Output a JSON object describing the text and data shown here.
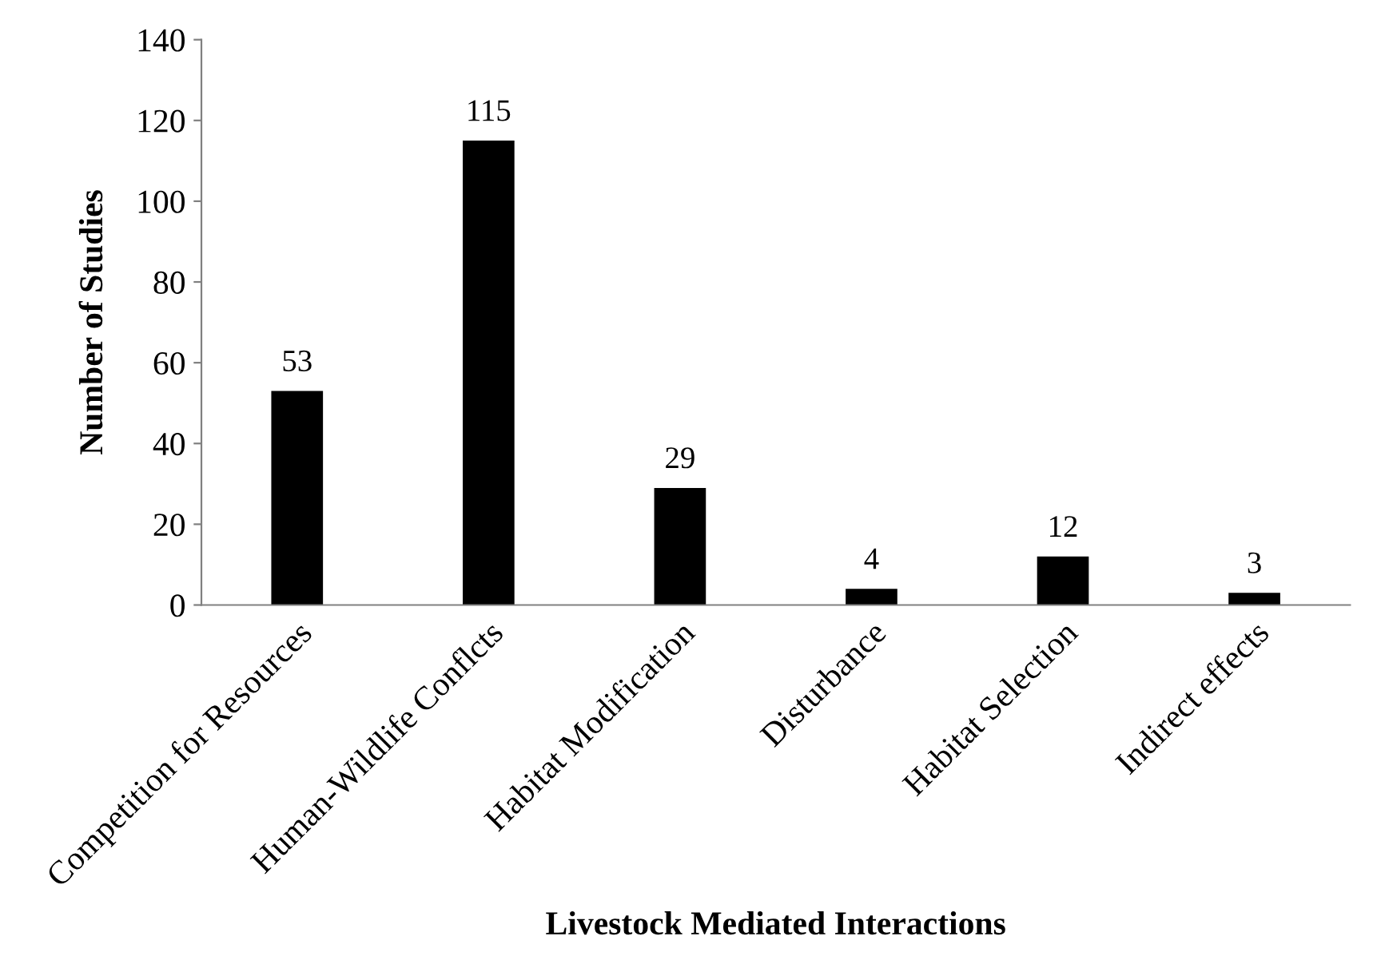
{
  "chart_data": {
    "type": "bar",
    "xlabel": "Livestock Mediated Interactions",
    "ylabel": "Number of Studies",
    "categories": [
      "Competition for Resources",
      "Human-Wildlife Conflcts",
      "Habitat Modification",
      "Disturbance",
      "Habitat Selection",
      "Indirect effects"
    ],
    "values": [
      53,
      115,
      29,
      4,
      12,
      3
    ],
    "color": "#000000",
    "ylim": [
      0,
      140
    ],
    "yticks": [
      0,
      20,
      40,
      60,
      80,
      100,
      120,
      140
    ],
    "data_labels": true,
    "grid": false,
    "legend": false
  }
}
